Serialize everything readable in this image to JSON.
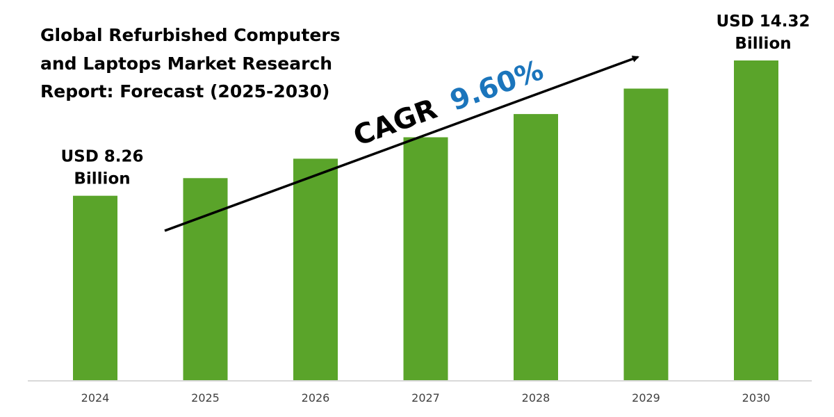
{
  "title_lines": [
    "Global Refurbished Computers",
    "and Laptops Market Research",
    "Report: Forecast (2025-2030)"
  ],
  "cagr": {
    "label": "CAGR",
    "value": "9.60%",
    "label_color": "#000000",
    "value_color": "#1b75bc"
  },
  "colors": {
    "bar": "#5aa42a",
    "axis": "#d9d9d9",
    "tick_text": "#404040",
    "arrow": "#000000"
  },
  "chart_data": {
    "type": "bar",
    "categories": [
      "2024",
      "2025",
      "2026",
      "2027",
      "2028",
      "2029",
      "2030"
    ],
    "values": [
      8.26,
      9.05,
      9.92,
      10.88,
      11.92,
      13.06,
      14.32
    ],
    "title": "Global Refurbished Computers and Laptops Market Research Report: Forecast (2025-2030)",
    "xlabel": "",
    "ylabel": "",
    "ylim": [
      0,
      14.32
    ],
    "grid": false,
    "legend": "none",
    "annotations": [
      {
        "category": "2024",
        "lines": [
          "USD 8.26",
          "Billion"
        ]
      },
      {
        "category": "2030",
        "lines": [
          "USD 14.32",
          "Billion"
        ]
      }
    ]
  }
}
